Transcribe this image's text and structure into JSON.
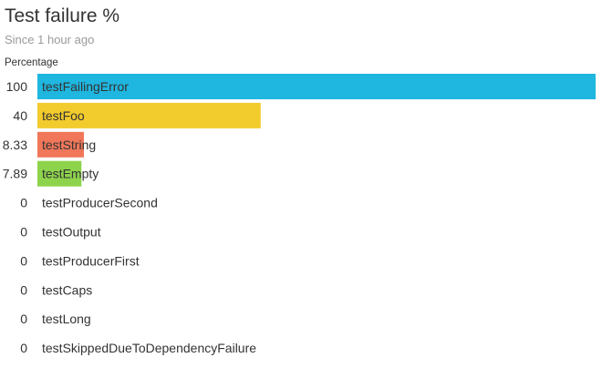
{
  "header": {
    "title": "Test failure %",
    "subtitle": "Since 1 hour ago"
  },
  "chart_data": {
    "type": "bar",
    "orientation": "horizontal",
    "title": "Test failure %",
    "subtitle": "Since 1 hour ago",
    "xlabel": "",
    "ylabel": "Percentage",
    "xlim": [
      0,
      100
    ],
    "grid": false,
    "legend": "none",
    "categories": [
      "testFailingError",
      "testFoo",
      "testString",
      "testEmpty",
      "testProducerSecond",
      "testOutput",
      "testProducerFirst",
      "testCaps",
      "testLong",
      "testSkippedDueToDependencyFailure"
    ],
    "value_labels": [
      "100",
      "40",
      "8.33",
      "7.89",
      "0",
      "0",
      "0",
      "0",
      "0",
      "0"
    ],
    "values": [
      100,
      40,
      8.33,
      7.89,
      0,
      0,
      0,
      0,
      0,
      0
    ],
    "colors": [
      "#1fb6df",
      "#f2cb2d",
      "#f1775a",
      "#8ed34c",
      "#cccccc",
      "#cccccc",
      "#cccccc",
      "#cccccc",
      "#cccccc",
      "#cccccc"
    ]
  }
}
